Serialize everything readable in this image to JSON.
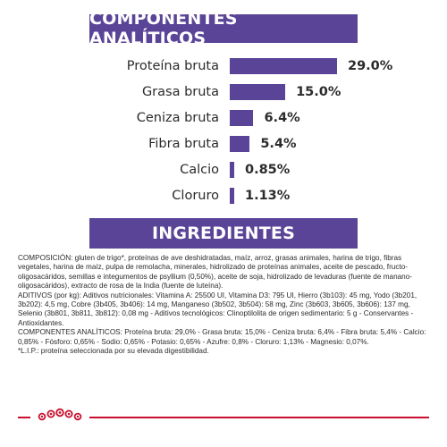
{
  "analytics_title": "COMPONENTES ANALÍTICOS",
  "ingredients_title": "INGREDIENTES",
  "chart_data": {
    "type": "bar",
    "categories": [
      "Proteína bruta",
      "Grasa bruta",
      "Ceniza bruta",
      "Fibra bruta",
      "Calcio",
      "Cloruro"
    ],
    "values": [
      29.0,
      15.0,
      6.4,
      5.4,
      0.85,
      1.13
    ],
    "value_labels": [
      "29.0%",
      "15.0%",
      "6.4%",
      "5.4%",
      "0.85%",
      "1.13%"
    ],
    "title": "COMPONENTES ANALÍTICOS",
    "xlabel": "",
    "ylabel": "",
    "xlim": [
      0,
      29
    ],
    "bar_color": "#5a4497"
  },
  "ingredients_paragraphs": [
    "COMPOSICIÓN: gluten de trigo*, proteínas de ave deshidratadas, maíz, arroz, grasas animales, harina de trigo, fibras vegetales, harina de maíz, pulpa de remolacha, minerales, hidrolizado de proteínas animales, aceite de pescado, fructo-oligosacáridos, semillas e integumentos de psyllium (0,50%), aceite de soja, hidrolizado de levaduras (fuente de manano-oligosacáridos), extracto de rosa de la India (fuente de luteína).",
    "ADITIVOS (por kg): Aditivos nutricionales: Vitamina A: 25500 UI, Vitamina D3: 795 UI, Hierro (3b103): 45 mg, Yodo (3b201, 3b202): 4,5 mg, Cobre (3b405, 3b406): 14 mg, Manganeso (3b502, 3b504): 58 mg, Zinc (3b603, 3b605, 3b606): 137 mg, Selenio (3b801, 3b811, 3b812): 0,08 mg - Aditivos tecnológicos: Clinoptilolita de origen sedimentario: 5 g - Conservantes - Antioxidantes.",
    "COMPONENTES ANALÍTICOS: Proteína bruta: 29,0% - Grasa bruta: 15,0% - Ceniza bruta: 6,4% - Fibra bruta: 5,4% - Calcio: 0,85% - Fósforo: 0,65% - Sodio: 0,65% - Potasio: 0,65% - Azufre: 0,8% - Cloruro: 1,13% - Magnesio: 0,07%.",
    "*L.I.P.: proteína seleccionada por su elevada digestibilidad."
  ],
  "colors": {
    "brand_purple": "#5a4497",
    "brand_red": "#c8102e"
  },
  "logo_icon": "royal-canin-crown-icon"
}
